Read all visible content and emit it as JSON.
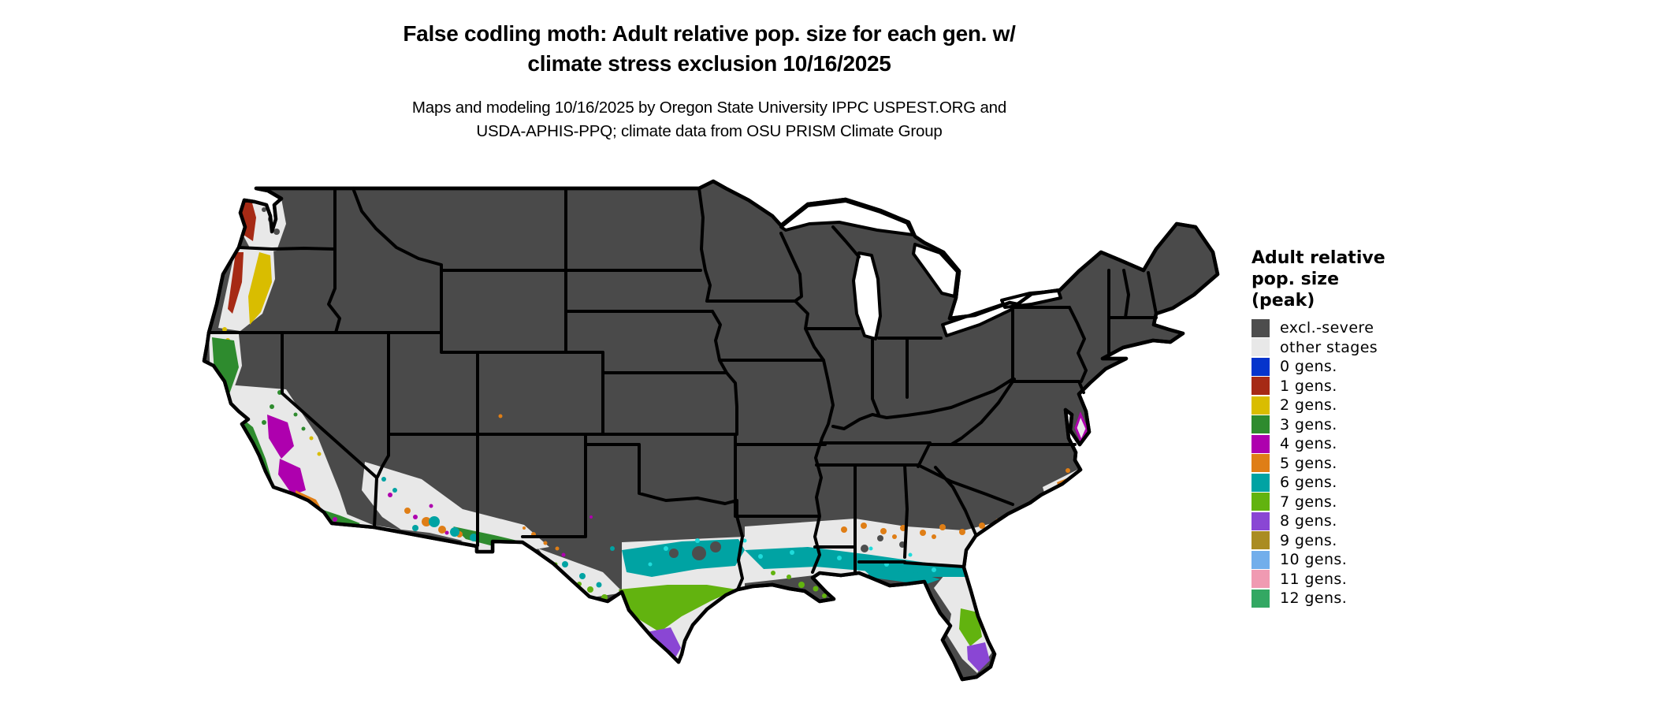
{
  "header": {
    "title_line1": "False codling moth: Adult relative pop. size for each gen. w/",
    "title_line2": "climate stress exclusion 10/16/2025",
    "subtitle_line1": "Maps and modeling 10/16/2025 by Oregon State University IPPC USPEST.ORG and",
    "subtitle_line2": "USDA-APHIS-PPQ; climate data from OSU PRISM Climate Group"
  },
  "legend": {
    "title_lines": [
      "Adult relative",
      "pop. size",
      "(peak)"
    ],
    "items": [
      {
        "key": "excl",
        "label": "excl.-severe",
        "color": "#4D4D4D"
      },
      {
        "key": "other",
        "label": "other stages",
        "color": "#E8E8E8"
      },
      {
        "key": "gen0",
        "label": "0 gens.",
        "color": "#0534CC"
      },
      {
        "key": "gen1",
        "label": "1 gens.",
        "color": "#A62A15"
      },
      {
        "key": "gen2",
        "label": "2 gens.",
        "color": "#D9BD00"
      },
      {
        "key": "gen3",
        "label": "3 gens.",
        "color": "#2E8B2E"
      },
      {
        "key": "gen4",
        "label": "4 gens.",
        "color": "#AE00AE"
      },
      {
        "key": "gen5",
        "label": "5 gens.",
        "color": "#DF7E16"
      },
      {
        "key": "gen6",
        "label": "6 gens.",
        "color": "#00A3A3"
      },
      {
        "key": "gen7",
        "label": "7 gens.",
        "color": "#62B30F"
      },
      {
        "key": "gen8",
        "label": "8 gens.",
        "color": "#8A46D4"
      },
      {
        "key": "gen9",
        "label": "9 gens.",
        "color": "#AA8C22"
      },
      {
        "key": "gen10",
        "label": "10 gens.",
        "color": "#72AEEB"
      },
      {
        "key": "gen11",
        "label": "11 gens.",
        "color": "#F09AB2"
      },
      {
        "key": "gen12",
        "label": "12 gens.",
        "color": "#33A863"
      }
    ]
  },
  "map": {
    "colors": {
      "land": "#4A4A4A",
      "water": "#FFFFFF",
      "border": "#000000",
      "cyan_speckle": "#1FDBDB"
    }
  }
}
